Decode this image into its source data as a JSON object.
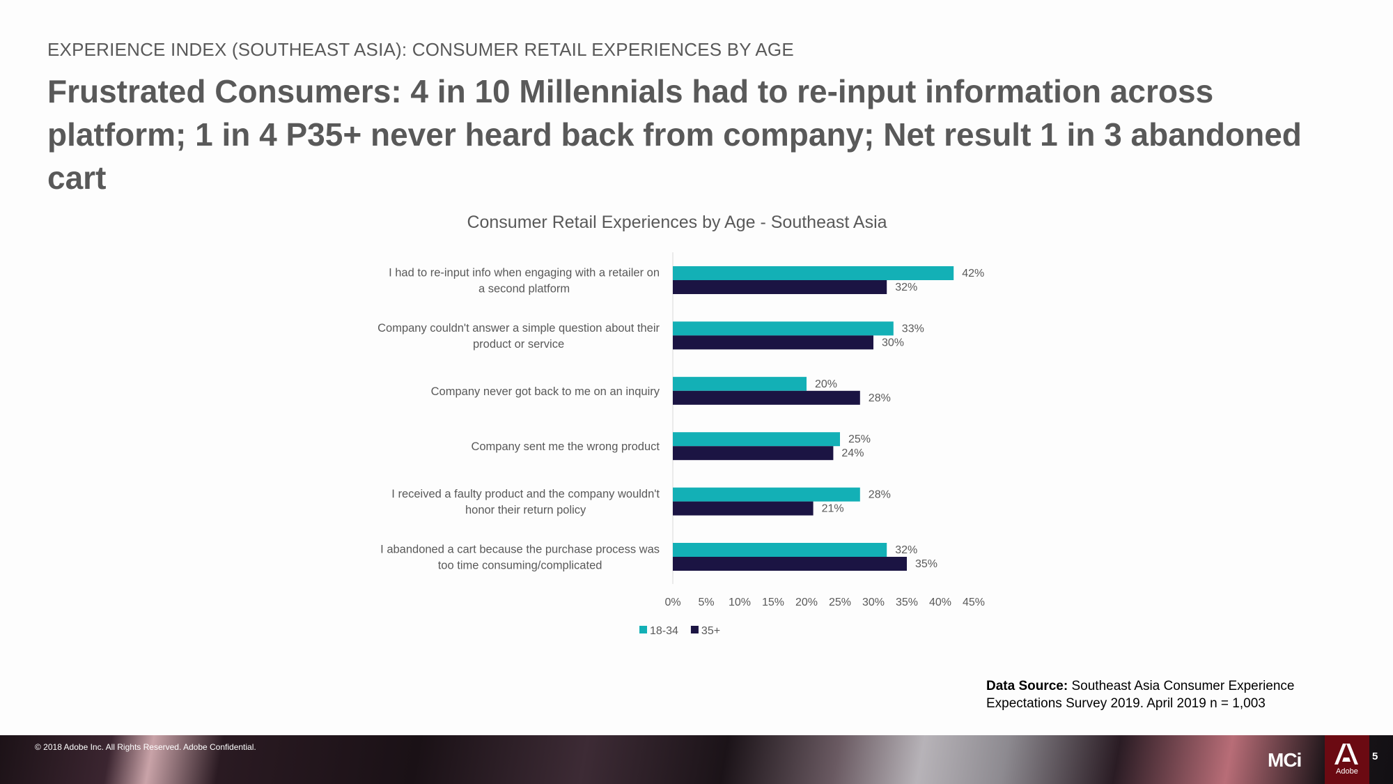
{
  "header": {
    "kicker": "EXPERIENCE INDEX (SOUTHEAST ASIA): CONSUMER RETAIL EXPERIENCES BY AGE",
    "headline": "Frustrated Consumers: 4 in 10 Millennials had to re-input information across platform; 1 in 4 P35+ never heard back from company; Net result 1 in 3 abandoned cart"
  },
  "chart_data": {
    "type": "bar",
    "orientation": "horizontal",
    "title": "Consumer Retail Experiences by Age - Southeast Asia",
    "categories": [
      [
        "I had to re-input info when engaging with a retailer on",
        "a second platform"
      ],
      [
        "Company couldn't answer a simple question about their",
        "product or service"
      ],
      [
        "Company never got back to me on an inquiry"
      ],
      [
        "Company sent me the wrong product"
      ],
      [
        "I received a faulty product and the company wouldn't",
        "honor their return policy"
      ],
      [
        "I abandoned a cart because the purchase process was",
        "too time consuming/complicated"
      ]
    ],
    "series": [
      {
        "name": "18-34",
        "values": [
          42,
          33,
          20,
          25,
          28,
          32
        ],
        "labels": [
          "42%",
          "33%",
          "20%",
          "25%",
          "28%",
          "32%"
        ],
        "color": "#13b0b6"
      },
      {
        "name": "35+",
        "values": [
          32,
          30,
          28,
          24,
          21,
          35
        ],
        "labels": [
          "32%",
          "30%",
          "28%",
          "24%",
          "21%",
          "35%"
        ],
        "color": "#1b1443"
      }
    ],
    "xlim": [
      0,
      45
    ],
    "xticks": [
      0,
      5,
      10,
      15,
      20,
      25,
      30,
      35,
      40,
      45
    ],
    "xtick_labels": [
      "0%",
      "5%",
      "10%",
      "15%",
      "20%",
      "25%",
      "30%",
      "35%",
      "40%",
      "45%"
    ],
    "legend_position": "bottom",
    "grid": false
  },
  "source": {
    "label": "Data Source:",
    "text": "Southeast Asia Consumer Experience Expectations Survey 2019. April 2019 n = 1,003"
  },
  "footer": {
    "copyright": "© 2018 Adobe Inc.  All Rights Reserved.  Adobe Confidential.",
    "mci_logo": "MCi",
    "adobe_word": "Adobe",
    "page_number": "5"
  }
}
